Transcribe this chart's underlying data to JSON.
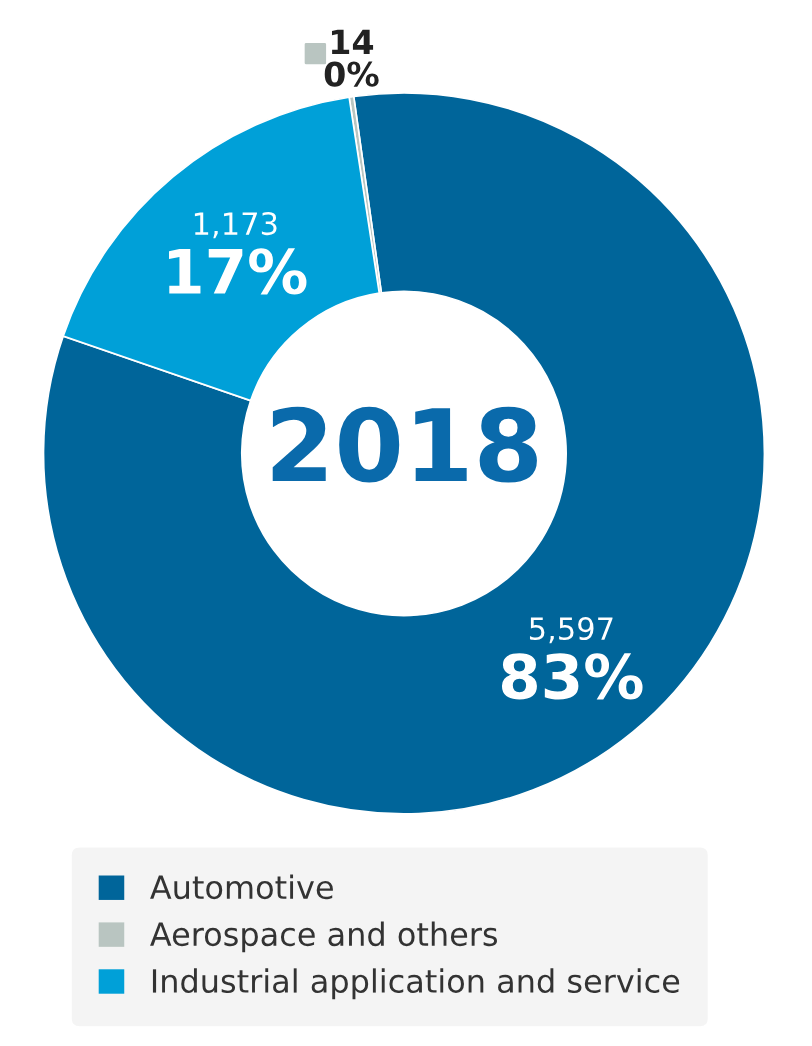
{
  "chart_data": {
    "type": "donut",
    "title": "2018",
    "categories": [
      "Automotive",
      "Aerospace and others",
      "Industrial application and service"
    ],
    "values": [
      5597,
      14,
      1173
    ],
    "colors": [
      "#00659a",
      "#b9c5c1",
      "#00a0d8"
    ],
    "value_labels": [
      "5,597\n83%",
      "14\n0%",
      "1,173\n17%"
    ],
    "legend": "bottom"
  }
}
